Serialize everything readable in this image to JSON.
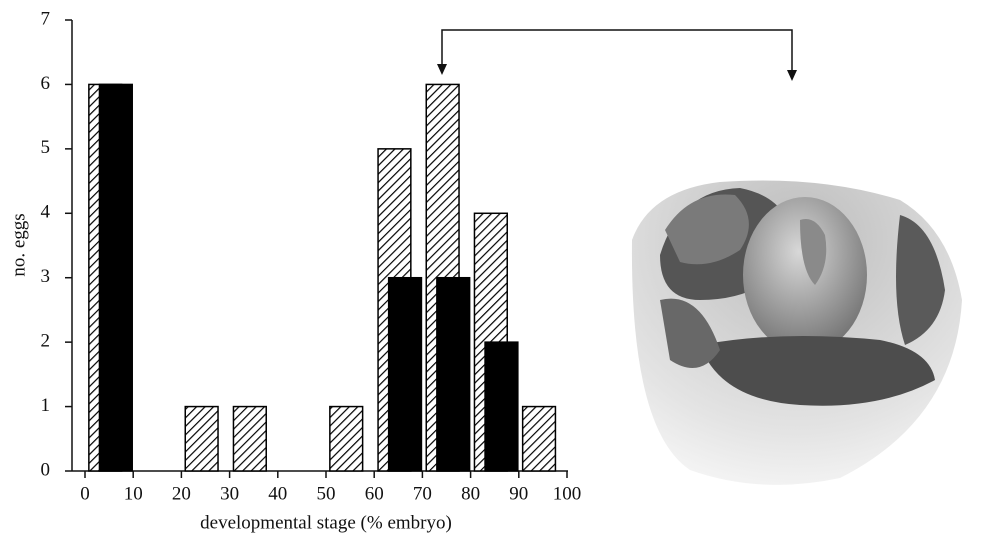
{
  "chart_data": {
    "type": "histogram",
    "x_label": "developmental stage (% embryo)",
    "y_label": "no. eggs",
    "bins": [
      0,
      10,
      20,
      30,
      40,
      50,
      60,
      70,
      80,
      90,
      100
    ],
    "series": [
      {
        "color": "#000000",
        "hatch": true,
        "values": [
          6,
          0,
          1,
          1,
          0,
          1,
          5,
          6,
          4,
          1
        ]
      },
      {
        "color": "#000000",
        "hatch": false,
        "values": [
          6,
          0,
          0,
          0,
          0,
          0,
          3,
          3,
          2,
          0
        ]
      }
    ],
    "xlim": [
      0,
      100
    ],
    "xticks": [
      0,
      10,
      20,
      30,
      40,
      50,
      60,
      70,
      80,
      90,
      100
    ],
    "ylim": [
      0,
      7
    ],
    "yticks": [
      0,
      1,
      2,
      3,
      4,
      5,
      6,
      7
    ]
  }
}
